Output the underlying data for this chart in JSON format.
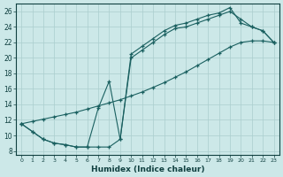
{
  "xlabel": "Humidex (Indice chaleur)",
  "background_color": "#cce8e8",
  "grid_color": "#aacece",
  "line_color": "#1a6060",
  "xlim": [
    -0.5,
    23.5
  ],
  "ylim": [
    7.5,
    27
  ],
  "xticks": [
    0,
    1,
    2,
    3,
    4,
    5,
    6,
    7,
    8,
    9,
    10,
    11,
    12,
    13,
    14,
    15,
    16,
    17,
    18,
    19,
    20,
    21,
    22,
    23
  ],
  "yticks": [
    8,
    10,
    12,
    14,
    16,
    18,
    20,
    22,
    24,
    26
  ],
  "line1_x": [
    0,
    1,
    2,
    3,
    4,
    5,
    6,
    7,
    8,
    9,
    10,
    11,
    12,
    13,
    14,
    15,
    16,
    17,
    18,
    19,
    20,
    21,
    22,
    23
  ],
  "line1_y": [
    11.5,
    10.5,
    9.5,
    9.0,
    8.8,
    8.5,
    8.5,
    8.5,
    8.5,
    9.5,
    20.5,
    21.5,
    22.5,
    23.5,
    24.2,
    24.5,
    25.0,
    25.5,
    25.8,
    26.5,
    24.5,
    24.0,
    23.5,
    22.0
  ],
  "line2_x": [
    0,
    1,
    2,
    3,
    4,
    5,
    6,
    7,
    8,
    9,
    10,
    11,
    12,
    13,
    14,
    15,
    16,
    17,
    18,
    19,
    20,
    21,
    22,
    23
  ],
  "line2_y": [
    11.5,
    10.5,
    9.5,
    9.0,
    8.8,
    8.5,
    8.5,
    13.5,
    17.0,
    9.5,
    20.0,
    21.0,
    22.0,
    23.0,
    23.8,
    24.0,
    24.5,
    25.0,
    25.5,
    26.0,
    25.0,
    24.0,
    23.5,
    22.0
  ],
  "line3_x": [
    0,
    1,
    2,
    3,
    4,
    5,
    6,
    7,
    8,
    9,
    10,
    11,
    12,
    13,
    14,
    15,
    16,
    17,
    18,
    19,
    20,
    21,
    22,
    23
  ],
  "line3_y": [
    11.5,
    11.8,
    12.1,
    12.4,
    12.7,
    13.0,
    13.4,
    13.8,
    14.2,
    14.6,
    15.1,
    15.6,
    16.2,
    16.8,
    17.5,
    18.2,
    19.0,
    19.8,
    20.6,
    21.4,
    22.0,
    22.2,
    22.2,
    22.0
  ]
}
